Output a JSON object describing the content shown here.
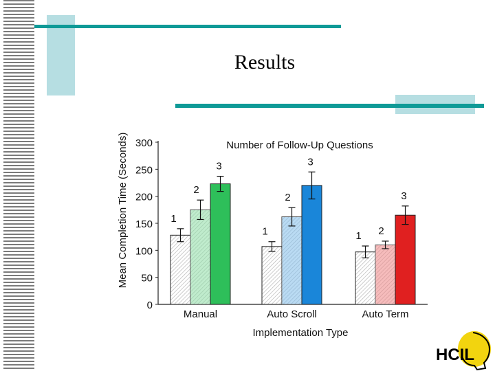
{
  "slide": {
    "title": "Results"
  },
  "logo": {
    "text": "HCIL"
  },
  "colors": {
    "stripe": "#7a7a7a",
    "accent_line": "#0f9a97",
    "accent_block": "#b6dee2",
    "manual": "#2ebf5a",
    "auto_scroll": "#1a86d9",
    "auto_term": "#e02020"
  },
  "chart_data": {
    "type": "bar",
    "title": "Number of Follow-Up Questions",
    "xlabel": "Implementation Type",
    "ylabel": "Mean Completion Time (Seconds)",
    "ylim": [
      0,
      300
    ],
    "yticks": [
      0,
      50,
      100,
      150,
      200,
      250,
      300
    ],
    "grid": false,
    "categories": [
      "Manual",
      "Auto Scroll",
      "Auto Term"
    ],
    "series": [
      {
        "name": "1",
        "values": [
          128,
          107,
          97
        ],
        "errors": [
          12,
          9,
          11
        ]
      },
      {
        "name": "2",
        "values": [
          175,
          162,
          110
        ],
        "errors": [
          18,
          17,
          7
        ]
      },
      {
        "name": "3",
        "values": [
          223,
          220,
          165
        ],
        "errors": [
          14,
          25,
          17
        ]
      }
    ]
  }
}
